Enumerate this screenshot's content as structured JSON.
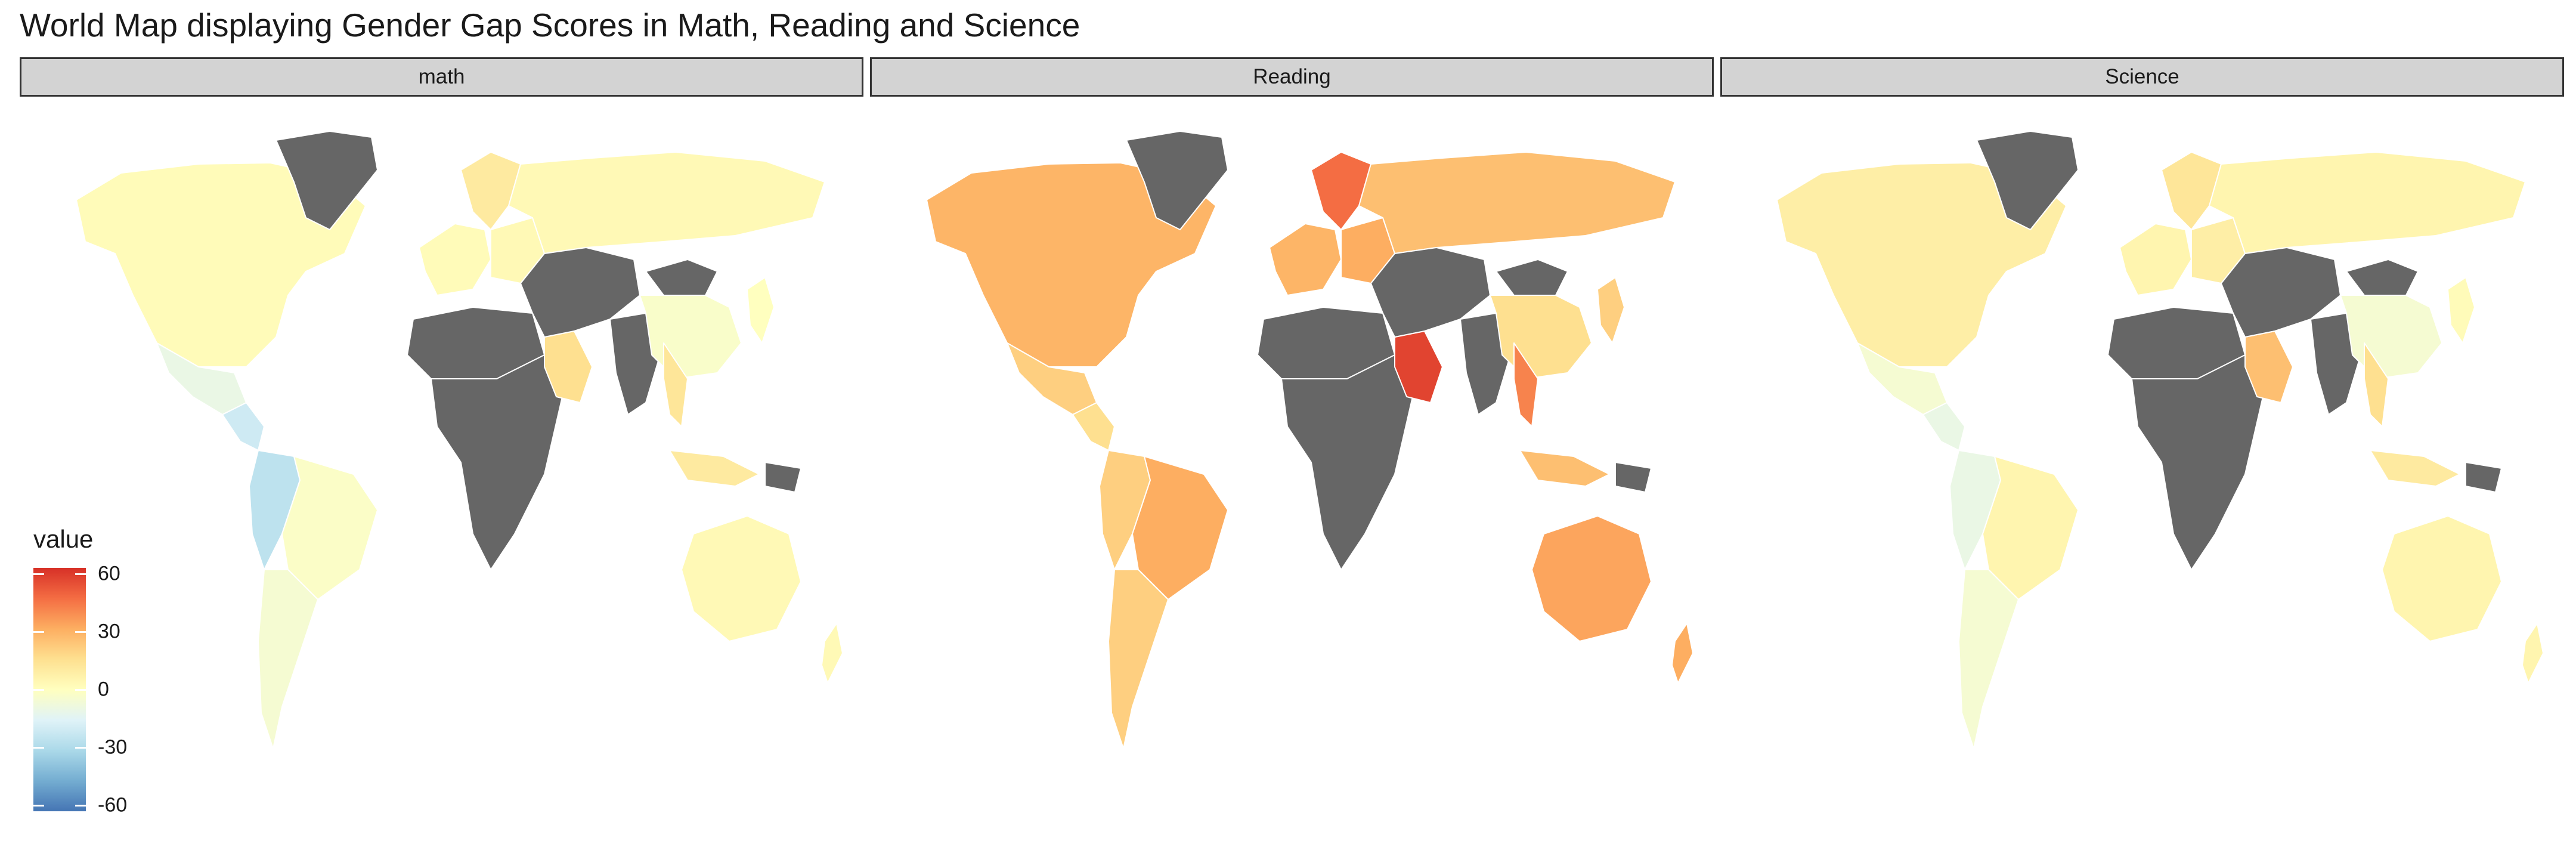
{
  "title": "World Map displaying Gender Gap Scores in Math, Reading and Science",
  "facets": [
    {
      "label": "math"
    },
    {
      "label": "Reading"
    },
    {
      "label": "Science"
    }
  ],
  "legend": {
    "title": "value",
    "ticks": [
      "60",
      "30",
      "0",
      "-30",
      "-60"
    ],
    "range": [
      -60,
      60
    ],
    "colors": [
      "#4575b4",
      "#74add1",
      "#abd9e9",
      "#e0f3f8",
      "#ffffbf",
      "#fee090",
      "#fdae61",
      "#f46d43",
      "#d73027"
    ],
    "no_data_color": "#666666"
  },
  "map_data": {
    "math": {
      "north_america": 2,
      "greenland": null,
      "mexico": -10,
      "central_america": -20,
      "colombia_peru": -25,
      "brazil": -2,
      "argentina_chile": -5,
      "western_europe": 2,
      "scandinavia": 10,
      "eastern_europe": 3,
      "russia": 3,
      "north_africa": null,
      "sub_saharan_africa": null,
      "arabia": 15,
      "middle_east_central_asia": null,
      "india": null,
      "china": -3,
      "mongolia": null,
      "japan_korea": 0,
      "southeast_asia": 12,
      "indonesia": 10,
      "australia": 3,
      "new_zealand": 3,
      "new_guinea": null
    },
    "reading": {
      "north_america": 28,
      "greenland": null,
      "mexico": 20,
      "central_america": 15,
      "colombia_peru": 20,
      "brazil": 30,
      "argentina_chile": 20,
      "western_europe": 28,
      "scandinavia": 45,
      "eastern_europe": 30,
      "russia": 25,
      "north_africa": null,
      "sub_saharan_africa": null,
      "arabia": 55,
      "middle_east_central_asia": null,
      "india": null,
      "china": 15,
      "mongolia": null,
      "japan_korea": 20,
      "southeast_asia": 40,
      "indonesia": 25,
      "australia": 32,
      "new_zealand": 30,
      "new_guinea": null
    },
    "science": {
      "north_america": 8,
      "greenland": null,
      "mexico": -5,
      "central_america": -10,
      "colombia_peru": -10,
      "brazil": 5,
      "argentina_chile": -5,
      "western_europe": 5,
      "scandinavia": 12,
      "eastern_europe": 8,
      "russia": 5,
      "north_africa": null,
      "sub_saharan_africa": null,
      "arabia": 25,
      "middle_east_central_asia": null,
      "india": null,
      "china": -5,
      "mongolia": null,
      "japan_korea": 2,
      "southeast_asia": 15,
      "indonesia": 10,
      "australia": 5,
      "new_zealand": 5,
      "new_guinea": null
    }
  }
}
